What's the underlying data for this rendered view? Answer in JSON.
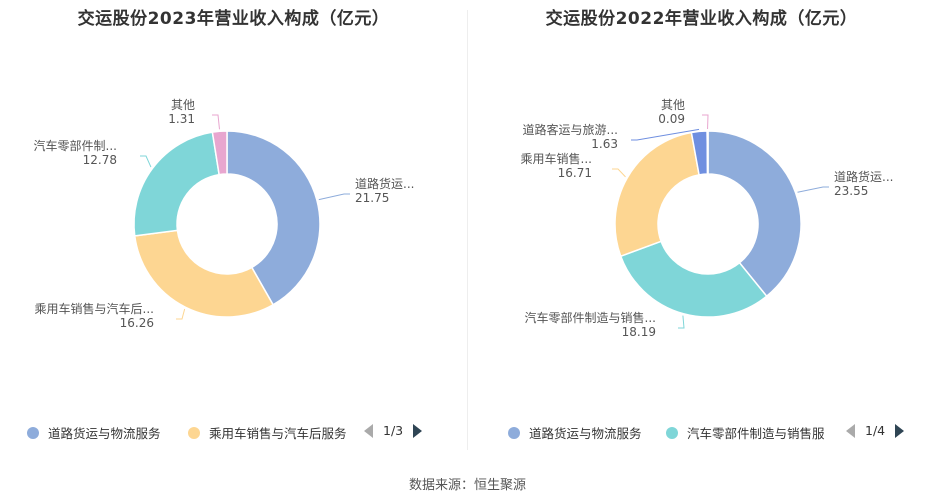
{
  "chart_data": [
    {
      "type": "pie",
      "donut": true,
      "title": "交运股份2023年营业收入构成（亿元）",
      "series": [
        {
          "name": "道路货运与物流服务",
          "label": "道路货运...",
          "value": 21.75,
          "value_text": "21.75",
          "color": "#8eacdb"
        },
        {
          "name": "乘用车销售与汽车后服务",
          "label": "乘用车销售与汽车后...",
          "value": 16.26,
          "value_text": "16.26",
          "color": "#fdd692"
        },
        {
          "name": "汽车零部件制造与销售",
          "label": "汽车零部件制...",
          "value": 12.78,
          "value_text": "12.78",
          "color": "#7fd6d8"
        },
        {
          "name": "其他",
          "label": "其他",
          "value": 1.31,
          "value_text": "1.31",
          "color": "#e8a6cf"
        }
      ],
      "legend": {
        "placement": "bottom",
        "items": [
          {
            "label": "道路货运与物流服务",
            "color": "#8eacdb"
          },
          {
            "label": "乘用车销售与汽车后服务",
            "color": "#fdd692"
          }
        ],
        "page": "1/3"
      }
    },
    {
      "type": "pie",
      "donut": true,
      "title": "交运股份2022年营业收入构成（亿元）",
      "series": [
        {
          "name": "道路货运与物流服务",
          "label": "道路货运...",
          "value": 23.55,
          "value_text": "23.55",
          "color": "#8eacdb"
        },
        {
          "name": "汽车零部件制造与销售",
          "label": "汽车零部件制造与销售...",
          "value": 18.19,
          "value_text": "18.19",
          "color": "#7fd6d8"
        },
        {
          "name": "乘用车销售与汽车后服务",
          "label": "乘用车销售...",
          "value": 16.71,
          "value_text": "16.71",
          "color": "#fdd692"
        },
        {
          "name": "道路客运与旅游服务",
          "label": "道路客运与旅游...",
          "value": 1.63,
          "value_text": "1.63",
          "color": "#6f8fe0"
        },
        {
          "name": "其他",
          "label": "其他",
          "value": 0.09,
          "value_text": "0.09",
          "color": "#e8a6cf"
        }
      ],
      "legend": {
        "placement": "bottom",
        "items": [
          {
            "label": "道路货运与物流服务",
            "color": "#8eacdb"
          },
          {
            "label": "汽车零部件制造与销售服",
            "color": "#7fd6d8"
          }
        ],
        "page": "1/4"
      }
    }
  ],
  "footer": {
    "source": "数据来源：恒生聚源"
  }
}
